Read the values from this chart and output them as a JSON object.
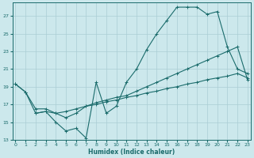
{
  "xlabel": "Humidex (Indice chaleur)",
  "bg_color": "#cce8ec",
  "grid_color": "#aacdd4",
  "line_color": "#1a6b6b",
  "ylim": [
    13,
    28.5
  ],
  "yticks": [
    13,
    15,
    17,
    19,
    21,
    23,
    25,
    27
  ],
  "xlim": [
    -0.3,
    23.3
  ],
  "x_ticks": [
    0,
    1,
    2,
    3,
    4,
    5,
    6,
    7,
    8,
    9,
    10,
    11,
    12,
    13,
    14,
    15,
    16,
    17,
    18,
    19,
    20,
    21,
    22,
    23
  ],
  "line1_x": [
    0,
    1,
    2,
    3,
    4,
    5,
    6,
    7,
    8,
    9,
    10,
    11,
    12,
    13,
    14,
    15,
    16,
    17,
    18,
    19,
    20,
    21,
    22,
    23
  ],
  "line1_y": [
    19.3,
    18.4,
    16.0,
    16.2,
    15.0,
    14.0,
    14.3,
    13.2,
    19.5,
    16.0,
    16.8,
    19.5,
    21.0,
    23.2,
    25.0,
    26.5,
    28.0,
    28.0,
    28.0,
    27.2,
    27.5,
    23.5,
    21.0,
    20.5
  ],
  "line2_x": [
    0,
    1,
    2,
    3,
    4,
    5,
    6,
    7,
    8,
    9,
    10,
    11,
    12,
    13,
    14,
    15,
    16,
    17,
    18,
    19,
    20,
    21,
    22,
    23
  ],
  "line2_y": [
    19.3,
    18.4,
    16.5,
    16.5,
    16.0,
    15.5,
    16.0,
    16.8,
    17.2,
    17.5,
    17.8,
    18.0,
    18.5,
    19.0,
    19.5,
    20.0,
    20.5,
    21.0,
    21.5,
    22.0,
    22.5,
    23.0,
    23.5,
    19.8
  ],
  "line3_x": [
    2,
    3,
    4,
    5,
    6,
    7,
    8,
    9,
    10,
    11,
    12,
    13,
    14,
    15,
    16,
    17,
    18,
    19,
    20,
    21,
    22,
    23
  ],
  "line3_y": [
    16.0,
    16.2,
    16.0,
    16.2,
    16.5,
    16.8,
    17.0,
    17.3,
    17.5,
    17.8,
    18.0,
    18.3,
    18.5,
    18.8,
    19.0,
    19.3,
    19.5,
    19.8,
    20.0,
    20.2,
    20.5,
    20.0
  ]
}
